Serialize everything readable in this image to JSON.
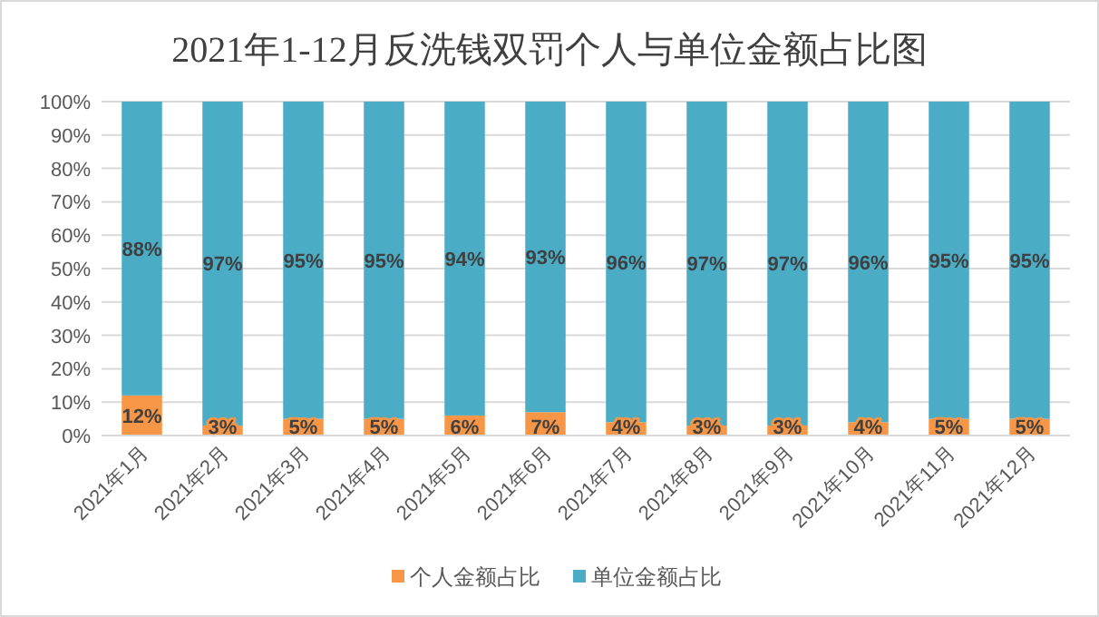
{
  "chart_data": {
    "type": "bar",
    "stacked": true,
    "title": "2021年1-12月反洗钱双罚个人与单位金额占比图",
    "categories": [
      "2021年1月",
      "2021年2月",
      "2021年3月",
      "2021年4月",
      "2021年5月",
      "2021年6月",
      "2021年7月",
      "2021年8月",
      "2021年9月",
      "2021年10月",
      "2021年11月",
      "2021年12月"
    ],
    "series": [
      {
        "name": "个人金额占比",
        "color": "#f79646",
        "values": [
          12,
          3,
          5,
          5,
          6,
          7,
          4,
          3,
          3,
          4,
          5,
          5
        ],
        "value_labels": [
          "12%",
          "3%",
          "5%",
          "5%",
          "6%",
          "7%",
          "4%",
          "3%",
          "3%",
          "4%",
          "5%",
          "5%"
        ]
      },
      {
        "name": "单位金额占比",
        "color": "#4bacc6",
        "values": [
          88,
          97,
          95,
          95,
          94,
          93,
          96,
          97,
          97,
          96,
          95,
          95
        ],
        "value_labels": [
          "88%",
          "97%",
          "95%",
          "95%",
          "94%",
          "93%",
          "96%",
          "97%",
          "97%",
          "96%",
          "95%",
          "95%"
        ]
      }
    ],
    "ylim": [
      0,
      100
    ],
    "yticks": [
      {
        "value": 0,
        "label": "0%"
      },
      {
        "value": 10,
        "label": "10%"
      },
      {
        "value": 20,
        "label": "20%"
      },
      {
        "value": 30,
        "label": "30%"
      },
      {
        "value": 40,
        "label": "40%"
      },
      {
        "value": 50,
        "label": "50%"
      },
      {
        "value": 60,
        "label": "60%"
      },
      {
        "value": 70,
        "label": "70%"
      },
      {
        "value": 80,
        "label": "80%"
      },
      {
        "value": 90,
        "label": "90%"
      },
      {
        "value": 100,
        "label": "100%"
      }
    ],
    "grid": "y",
    "legend": "bottom"
  }
}
